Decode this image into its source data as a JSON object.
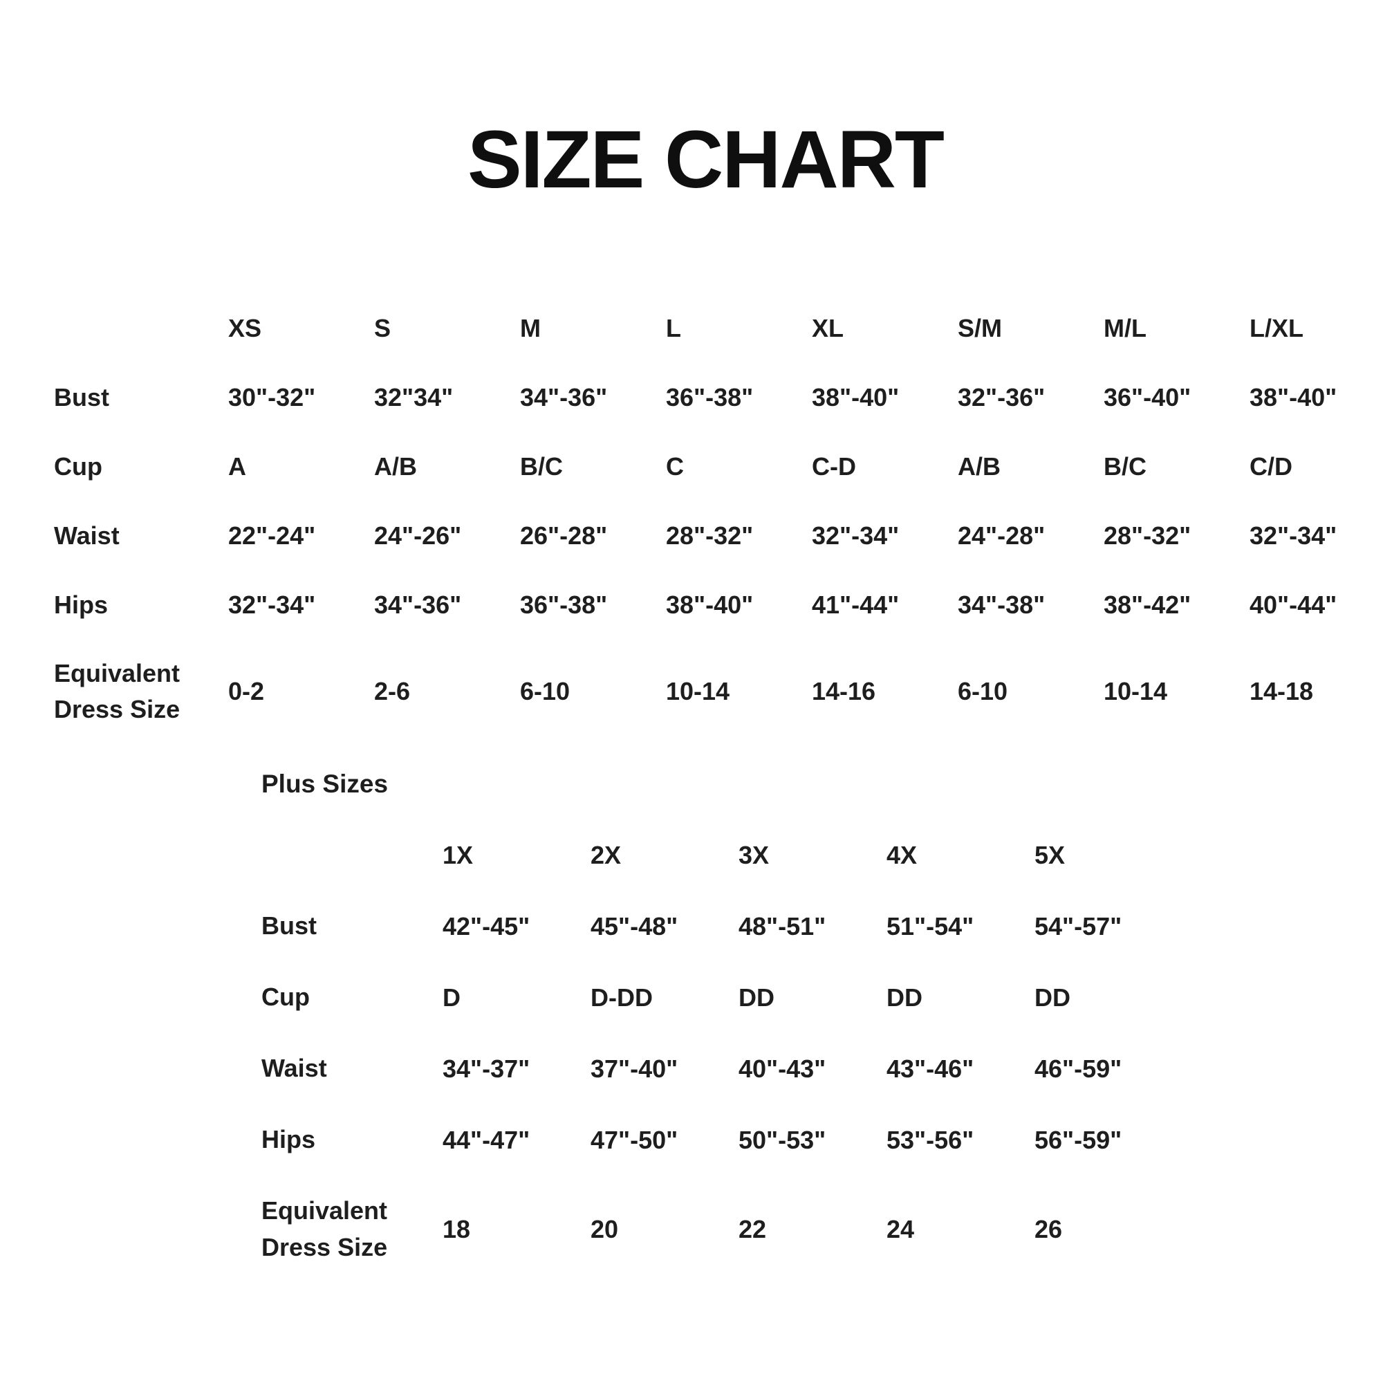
{
  "title": "SIZE CHART",
  "colors": {
    "background": "#ffffff",
    "text": "#1e1e1e",
    "title": "#0f0f0f"
  },
  "chart_data": [
    {
      "type": "table",
      "name": "standard-sizes",
      "columns": [
        "XS",
        "S",
        "M",
        "L",
        "XL",
        "S/M",
        "M/L",
        "L/XL"
      ],
      "rows": [
        {
          "label": "Bust",
          "values": [
            "30\"-32\"",
            "32\"34\"",
            "34\"-36\"",
            "36\"-38\"",
            "38\"-40\"",
            "32\"-36\"",
            "36\"-40\"",
            "38\"-40\""
          ]
        },
        {
          "label": "Cup",
          "values": [
            "A",
            "A/B",
            "B/C",
            "C",
            "C-D",
            "A/B",
            "B/C",
            "C/D"
          ]
        },
        {
          "label": "Waist",
          "values": [
            "22\"-24\"",
            "24\"-26\"",
            "26\"-28\"",
            "28\"-32\"",
            "32\"-34\"",
            "24\"-28\"",
            "28\"-32\"",
            "32\"-34\""
          ]
        },
        {
          "label": "Hips",
          "values": [
            "32\"-34\"",
            "34\"-36\"",
            "36\"-38\"",
            "38\"-40\"",
            "41\"-44\"",
            "34\"-38\"",
            "38\"-42\"",
            "40\"-44\""
          ]
        },
        {
          "label": "Equivalent Dress Size",
          "values": [
            "0-2",
            "2-6",
            "6-10",
            "10-14",
            "14-16",
            "6-10",
            "10-14",
            "14-18"
          ]
        }
      ]
    },
    {
      "type": "table",
      "name": "plus-sizes",
      "section_label": "Plus Sizes",
      "columns": [
        "1X",
        "2X",
        "3X",
        "4X",
        "5X"
      ],
      "rows": [
        {
          "label": "Bust",
          "values": [
            "42\"-45\"",
            "45\"-48\"",
            "48\"-51\"",
            "51\"-54\"",
            "54\"-57\""
          ]
        },
        {
          "label": "Cup",
          "values": [
            "D",
            "D-DD",
            "DD",
            "DD",
            "DD"
          ]
        },
        {
          "label": "Waist",
          "values": [
            "34\"-37\"",
            "37\"-40\"",
            "40\"-43\"",
            "43\"-46\"",
            "46\"-59\""
          ]
        },
        {
          "label": "Hips",
          "values": [
            "44\"-47\"",
            "47\"-50\"",
            "50\"-53\"",
            "53\"-56\"",
            "56\"-59\""
          ]
        },
        {
          "label": "Equivalent Dress Size",
          "values": [
            "18",
            "20",
            "22",
            "24",
            "26"
          ]
        }
      ]
    }
  ]
}
